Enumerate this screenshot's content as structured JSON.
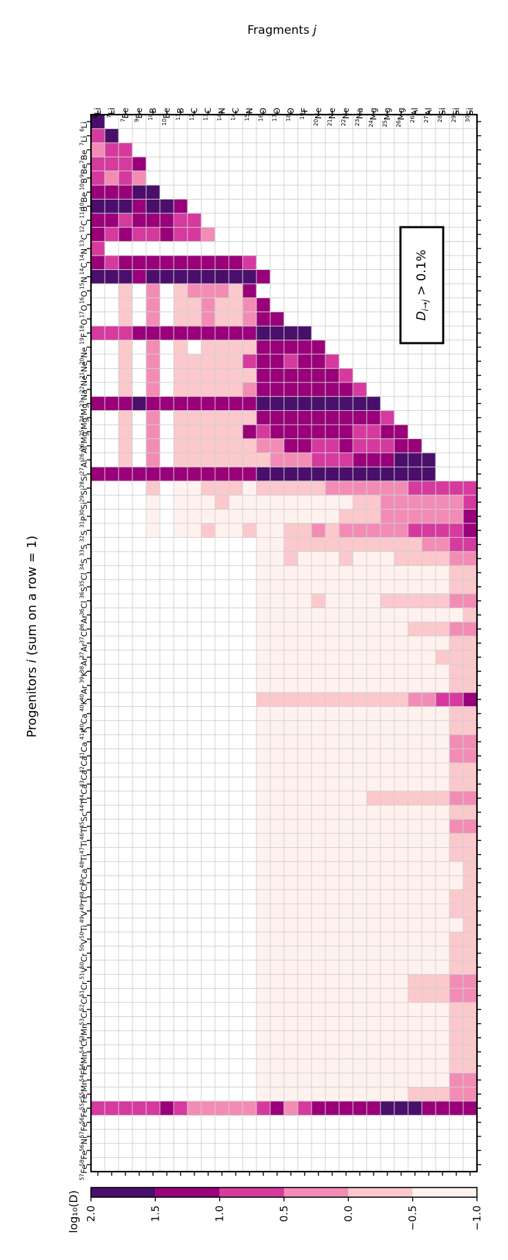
{
  "chart_data": {
    "type": "heatmap",
    "title": "",
    "xlabel_prefix": "Fragments",
    "xlabel_var": "j",
    "ylabel_prefix": "Progenitors",
    "ylabel_var": "i",
    "ylabel_suffix": "(sum on a row = 1)",
    "annotation": "D_{i→j} > 0.1%",
    "colorbar": {
      "label": "log₁₀(D)",
      "range": [
        -1.0,
        2.0
      ],
      "ticks": [
        "2.0",
        "1.5",
        "1.0",
        "0.5",
        "0.0",
        "−0.5",
        "−1.0"
      ],
      "colors": [
        "#4a0f6b",
        "#99007a",
        "#d63a9e",
        "#f28cb5",
        "#fbc8cc",
        "#fff2ee"
      ]
    },
    "fragments": [
      {
        "sup": "6",
        "el": "Li"
      },
      {
        "sup": "7",
        "el": "Li"
      },
      {
        "sup": "7",
        "el": "Be"
      },
      {
        "sup": "9",
        "el": "Be"
      },
      {
        "sup": "10",
        "el": "B"
      },
      {
        "sup": "10",
        "el": "Be"
      },
      {
        "sup": "11",
        "el": "B"
      },
      {
        "sup": "12",
        "el": "C"
      },
      {
        "sup": "13",
        "el": "C"
      },
      {
        "sup": "14",
        "el": "N"
      },
      {
        "sup": "14",
        "el": "C"
      },
      {
        "sup": "15",
        "el": "N"
      },
      {
        "sup": "16",
        "el": "O"
      },
      {
        "sup": "17",
        "el": "O"
      },
      {
        "sup": "18",
        "el": "O"
      },
      {
        "sup": "19",
        "el": "F"
      },
      {
        "sup": "20",
        "el": "Ne"
      },
      {
        "sup": "21",
        "el": "Ne"
      },
      {
        "sup": "22",
        "el": "Ne"
      },
      {
        "sup": "23",
        "el": "Na"
      },
      {
        "sup": "24",
        "el": "Mg"
      },
      {
        "sup": "25",
        "el": "Mg"
      },
      {
        "sup": "26",
        "el": "Mg"
      },
      {
        "sup": "26",
        "el": "Al"
      },
      {
        "sup": "27",
        "el": "Al"
      },
      {
        "sup": "28",
        "el": "Si"
      },
      {
        "sup": "29",
        "el": "Si"
      },
      {
        "sup": "30",
        "el": "Si"
      }
    ],
    "progenitors": [
      {
        "sup": "6",
        "el": "Li"
      },
      {
        "sup": "7",
        "el": "Li"
      },
      {
        "sup": "7",
        "el": "Be"
      },
      {
        "sup": "9",
        "el": "Be"
      },
      {
        "sup": "10",
        "el": "B"
      },
      {
        "sup": "10",
        "el": "Be"
      },
      {
        "sup": "11",
        "el": "B"
      },
      {
        "sup": "12",
        "el": "C"
      },
      {
        "sup": "13",
        "el": "C"
      },
      {
        "sup": "14",
        "el": "N"
      },
      {
        "sup": "14",
        "el": "C"
      },
      {
        "sup": "15",
        "el": "N"
      },
      {
        "sup": "16",
        "el": "O"
      },
      {
        "sup": "17",
        "el": "O"
      },
      {
        "sup": "18",
        "el": "O"
      },
      {
        "sup": "19",
        "el": "F"
      },
      {
        "sup": "20",
        "el": "Ne"
      },
      {
        "sup": "21",
        "el": "Ne"
      },
      {
        "sup": "22",
        "el": "Ne"
      },
      {
        "sup": "23",
        "el": "Na"
      },
      {
        "sup": "24",
        "el": "Mg"
      },
      {
        "sup": "25",
        "el": "Mg"
      },
      {
        "sup": "26",
        "el": "Mg"
      },
      {
        "sup": "26",
        "el": "Al"
      },
      {
        "sup": "27",
        "el": "Al"
      },
      {
        "sup": "28",
        "el": "Si"
      },
      {
        "sup": "29",
        "el": "Si"
      },
      {
        "sup": "30",
        "el": "Si"
      },
      {
        "sup": "31",
        "el": "P"
      },
      {
        "sup": "32",
        "el": "S"
      },
      {
        "sup": "33",
        "el": "S"
      },
      {
        "sup": "34",
        "el": "S"
      },
      {
        "sup": "35",
        "el": "Cl"
      },
      {
        "sup": "36",
        "el": "S"
      },
      {
        "sup": "36",
        "el": "Cl"
      },
      {
        "sup": "36",
        "el": "Ar"
      },
      {
        "sup": "37",
        "el": "Cl"
      },
      {
        "sup": "37",
        "el": "Ar"
      },
      {
        "sup": "38",
        "el": "Ar"
      },
      {
        "sup": "39",
        "el": "K"
      },
      {
        "sup": "40",
        "el": "Ar"
      },
      {
        "sup": "40",
        "el": "K"
      },
      {
        "sup": "40",
        "el": "Ca"
      },
      {
        "sup": "41",
        "el": "K"
      },
      {
        "sup": "41",
        "el": "Ca"
      },
      {
        "sup": "42",
        "el": "Ca"
      },
      {
        "sup": "43",
        "el": "Ca"
      },
      {
        "sup": "44",
        "el": "Ca"
      },
      {
        "sup": "44",
        "el": "Ti"
      },
      {
        "sup": "45",
        "el": "Sc"
      },
      {
        "sup": "46",
        "el": "Ti"
      },
      {
        "sup": "47",
        "el": "Ti"
      },
      {
        "sup": "48",
        "el": "Ti"
      },
      {
        "sup": "48",
        "el": "Ca"
      },
      {
        "sup": "48",
        "el": "Cr"
      },
      {
        "sup": "49",
        "el": "Ti"
      },
      {
        "sup": "49",
        "el": "V"
      },
      {
        "sup": "50",
        "el": "Ti"
      },
      {
        "sup": "50",
        "el": "V"
      },
      {
        "sup": "50",
        "el": "Cr"
      },
      {
        "sup": "51",
        "el": "V"
      },
      {
        "sup": "51",
        "el": "Cr"
      },
      {
        "sup": "52",
        "el": "Cr"
      },
      {
        "sup": "53",
        "el": "Cr"
      },
      {
        "sup": "53",
        "el": "Mn"
      },
      {
        "sup": "54",
        "el": "Cr"
      },
      {
        "sup": "54",
        "el": "Mn"
      },
      {
        "sup": "54",
        "el": "Fe"
      },
      {
        "sup": "55",
        "el": "Mn"
      },
      {
        "sup": "55",
        "el": "Fe"
      },
      {
        "sup": "56",
        "el": "Fe"
      },
      {
        "sup": "57",
        "el": "Fe"
      },
      {
        "sup": "56",
        "el": "Ni"
      },
      {
        "sup": "58",
        "el": "Fe"
      },
      {
        "sup": "57",
        "el": "Fe"
      }
    ],
    "values": [
      "A",
      "CA",
      "DCC",
      "CCCB",
      "CDCD",
      "BBBAA",
      "AAABAAB",
      "BBCBBBCC",
      "BCBCCBCCD",
      "C",
      "BCBBBBBBBBBC",
      "AAABAAAAAAAAB",
      "..E.D.EDDDEB..",
      "..E.D.EEDEEDB..",
      "..E.D.EEDEEDBB..",
      "CCCBBBBBBBBBAAAA",
      "..E.D.E.EEEEBBBBB",
      "..E.D.EEEEECBBCBBC",
      "..E.D.EEEEEEBBBBBBC",
      "..E.D.EEEEEDBBBBBBBC",
      "BBBABBBBBBBBAAAAAAAAA",
      "..E.D.EEEEEEBBBBBBBBBC",
      "..E.D.EEEEEBCBBBBBBCCBB",
      "..E.D.EEEEEEDDBBCCBCCCBB",
      "..E.D.EEEEEEEDDDCCCBBBAAA",
      "BBBBBBBBBBBBAAAAAAAAAAAAA",
      "....E.FFEEEFEEEEEDDDDDDCCCCC",
      "....F.FFFEFFFFFFFFFEEDDDDDDC",
      "....F.FFFFFFFFFFFFEEEDDDDDDB",
      "....F.FFEFFEFFEEDEDDDDDCCCCB",
      "............FFEEEEEEEEEEDDCC",
      "............FFEFFFEFFFEEEEDD",
      "............FFFFFFFFFFFFFFEE",
      "............FFFFFFFFFFFFFFEE",
      "............FFFFEFFFFEEEEEDD",
      "............FFFFFFFFFFFFFFFE",
      "............FFFFFFFFFFFEEEDD",
      "............FFFFFFFFFFFFFFEE",
      "............FFFFFFFFFFFFFEEE",
      "............FFFFFFFFFFFFFFEE",
      "............FFFFFFFFFFFFFFEE",
      "............EEEEEEEEEEEDDCCB",
      "............FFFFFFFFFFFFFFEE",
      "............FFFFFFFFFFFFFFEE",
      "............FFFFFFFFFFFFFFDD",
      "............FFFFFFFFFFFFFFDD",
      "............FFFFFFFFFFFFFFEE",
      "............FFFFFFFFFFFFFFEE",
      "............FFFFFFFFEEEEEEDD",
      "............FFFFFFFFFFFFFFEE",
      "............FFFFFFFFFFFFFFDD",
      "............FFFFFFFFFFFFFFEE",
      "............FFFFFFFFFFFFFFEE",
      "............FFFFFFFFFFFFFFFE",
      "............FFFFFFFFFFFFFFFE",
      "............FFFFFFFFFFFFFFEE",
      "............FFFFFFFFFFFFFFEE",
      "............FFFFFFFFFFFFFFFE",
      "............FFFFFFFFFFFFFFEE",
      "............FFFFFFFFFFFFFFEE",
      "............FFFFFFFFFFFFFFEE",
      "............FFFFFFFFFFFEEEDD",
      "............FFFFFFFFFFFEEEDD",
      "............FFFFFFFFFFFFFFEE",
      "............FFFFFFFFFFFFFFEE",
      "............FFFFFFFFFFFFFFEE",
      "............FFFFFFFFFFFFFFEE",
      "............FFFFFFFFFFFFFFEE",
      "............FFFFFFFFFFFFFFDD",
      "............FFFFFFFFFFFEEEDD",
      "CCCCCBCDDDDDCBDCBBBBBAAABBBB",
      "",
      "",
      "",
      "............................"
    ],
    "notes": "Rows = progenitors i, columns = fragments j. Letters encode log10(D) bins: A≈1.75 (dark purple), B≈1.25, C≈0.75, D≈0.25, E≈-0.25, F≈-0.75; '.' = blank (D ≤ 0.1%)."
  }
}
